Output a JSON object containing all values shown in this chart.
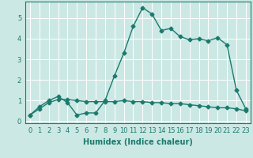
{
  "xlabel": "Humidex (Indice chaleur)",
  "ylabel": "",
  "background_color": "#cce8e4",
  "grid_color": "#b8dbd6",
  "line_color": "#1a7a6e",
  "x_values": [
    0,
    1,
    2,
    3,
    4,
    5,
    6,
    7,
    8,
    9,
    10,
    11,
    12,
    13,
    14,
    15,
    16,
    17,
    18,
    19,
    20,
    21,
    22,
    23
  ],
  "line1_y": [
    0.3,
    0.7,
    1.0,
    1.2,
    0.9,
    0.3,
    0.4,
    0.4,
    1.0,
    2.2,
    3.3,
    4.6,
    5.5,
    5.2,
    4.4,
    4.5,
    4.1,
    3.95,
    4.0,
    3.9,
    4.05,
    3.7,
    1.5,
    0.6
  ],
  "line2_y": [
    0.3,
    0.6,
    0.9,
    1.05,
    1.05,
    1.0,
    0.95,
    0.95,
    0.95,
    0.95,
    1.0,
    0.95,
    0.95,
    0.9,
    0.9,
    0.85,
    0.85,
    0.8,
    0.75,
    0.7,
    0.65,
    0.65,
    0.6,
    0.5
  ],
  "ylim": [
    -0.1,
    5.8
  ],
  "xlim": [
    -0.5,
    23.5
  ],
  "yticks": [
    0,
    1,
    2,
    3,
    4,
    5
  ],
  "xticks": [
    0,
    1,
    2,
    3,
    4,
    5,
    6,
    7,
    8,
    9,
    10,
    11,
    12,
    13,
    14,
    15,
    16,
    17,
    18,
    19,
    20,
    21,
    22,
    23
  ],
  "marker": "D",
  "markersize": 2.5,
  "linewidth": 1.0,
  "label_fontsize": 7,
  "tick_fontsize": 6
}
